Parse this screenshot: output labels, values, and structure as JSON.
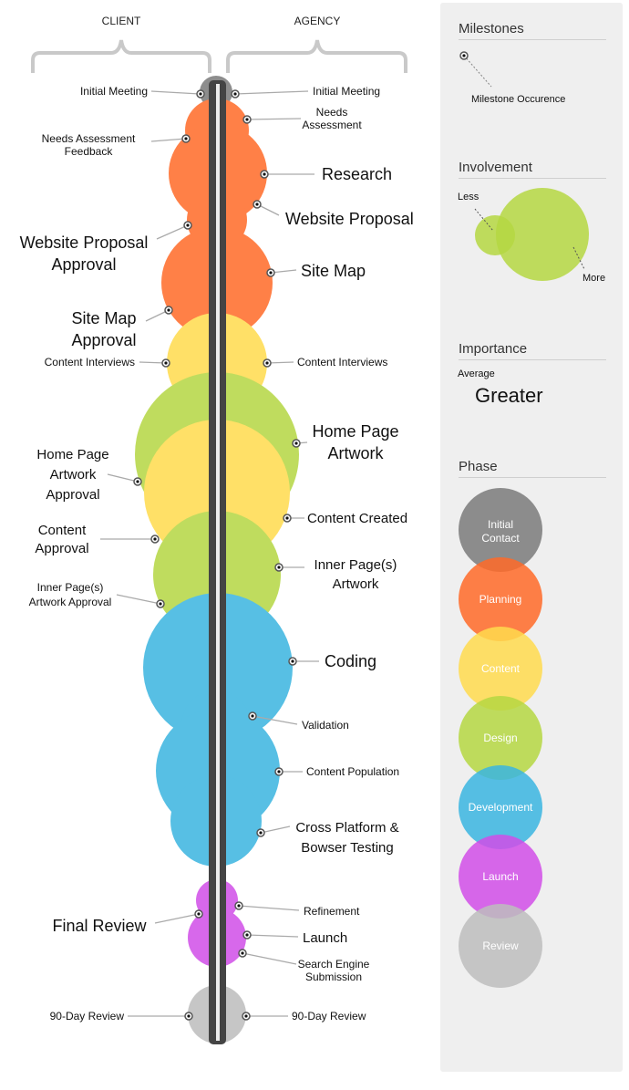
{
  "columns": {
    "client": "CLIENT",
    "agency": "AGENCY"
  },
  "phases": [
    {
      "key": "initial",
      "label": "Initial Contact",
      "color": "#7a7a7a"
    },
    {
      "key": "planning",
      "label": "Planning",
      "color": "#ff6a28"
    },
    {
      "key": "content",
      "label": "Content",
      "color": "#ffdb4d"
    },
    {
      "key": "design",
      "label": "Design",
      "color": "#b5d742"
    },
    {
      "key": "development",
      "label": "Development",
      "color": "#3ab5e0"
    },
    {
      "key": "launch",
      "label": "Launch",
      "color": "#d14ee8"
    },
    {
      "key": "review",
      "label": "Review",
      "color": "#bdbdbd"
    }
  ],
  "milestones": {
    "client": [
      "Initial Meeting",
      "Needs Assessment Feedback",
      "Website Proposal Approval",
      "Site Map Approval",
      "Content Interviews",
      "Home Page Artwork Approval",
      "Content Approval",
      "Inner Page(s) Artwork Approval",
      "Final Review",
      "90-Day Review"
    ],
    "agency": [
      "Initial Meeting",
      "Needs Assessment",
      "Research",
      "Website Proposal",
      "Site Map",
      "Content Interviews",
      "Home Page Artwork",
      "Content Created",
      "Inner Page(s) Artwork",
      "Coding",
      "Validation",
      "Content Population",
      "Cross Platform & Bowser Testing",
      "Refinement",
      "Launch",
      "Search Engine Submission",
      "90-Day Review"
    ]
  },
  "legend": {
    "milestones": {
      "title": "Milestones",
      "caption": "Milestone Occurence"
    },
    "involvement": {
      "title": "Involvement",
      "less": "Less",
      "more": "More"
    },
    "importance": {
      "title": "Importance",
      "average": "Average",
      "greater": "Greater"
    },
    "phase": {
      "title": "Phase"
    }
  }
}
